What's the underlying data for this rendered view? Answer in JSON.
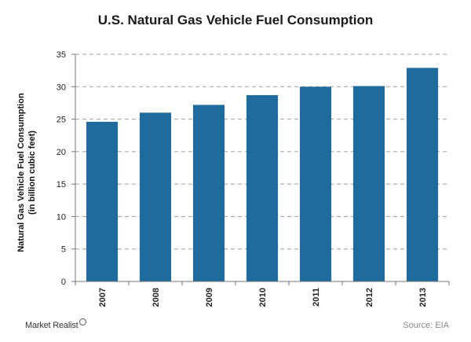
{
  "chart_data": {
    "type": "bar",
    "title": "U.S. Natural Gas Vehicle Fuel Consumption",
    "ylabel_lines": [
      "Natural Gas Vehicle Fuel Consumption",
      "(in billion cubic feet)"
    ],
    "categories": [
      "2007",
      "2008",
      "2009",
      "2010",
      "2011",
      "2012",
      "2013"
    ],
    "values": [
      24.6,
      26.0,
      27.2,
      28.7,
      30.0,
      30.1,
      32.9
    ],
    "ylim": [
      0,
      35
    ],
    "yticks": [
      0,
      5,
      10,
      15,
      20,
      25,
      30,
      35
    ],
    "grid": true,
    "bar_color": "#1f6b9e"
  },
  "footer": {
    "brand": "Market Realist",
    "source": "Source: EIA"
  }
}
